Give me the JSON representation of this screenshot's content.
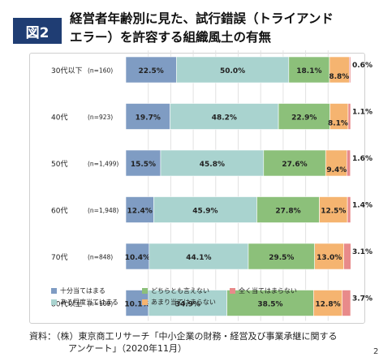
{
  "figure_badge": "図2",
  "title_line1": "経営者年齢別に見た、試行錯誤（トライアンド",
  "title_line2": "エラー）を許容する組織風土の有無",
  "source_line1": "資料：（株）東京商工リサーチ「中小企業の財務・経営及び事業承継に関する",
  "source_line2": "アンケート」（2020年11月）",
  "corner_text": "2",
  "chart_data": {
    "type": "bar",
    "orientation": "horizontal",
    "stacked": true,
    "title": "",
    "xlabel": "",
    "ylabel": "",
    "xlim": [
      0,
      100
    ],
    "x_ticks": [
      "0%",
      "10%",
      "20%",
      "30%",
      "40%",
      "50%",
      "60%",
      "70%",
      "80%",
      "90%"
    ],
    "categories": [
      "30代以下",
      "40代",
      "50代",
      "60代",
      "70代",
      "80代以上"
    ],
    "sample_sizes": [
      "(n=160)",
      "(n=923)",
      "(n=1,499)",
      "(n=1,948)",
      "(n=848)",
      "(n=109)"
    ],
    "series": [
      {
        "name": "十分当てはまる",
        "color": "#7f9cc3",
        "values": [
          22.5,
          19.7,
          15.5,
          12.4,
          10.4,
          10.1
        ],
        "labels": [
          "22.5%",
          "19.7%",
          "15.5%",
          "12.4%",
          "10.4%",
          "10.1%"
        ]
      },
      {
        "name": "ある程度当てはまる",
        "color": "#a9d3cf",
        "values": [
          50.0,
          48.2,
          45.8,
          45.9,
          44.1,
          34.9
        ],
        "labels": [
          "50.0%",
          "48.2%",
          "45.8%",
          "45.9%",
          "44.1%",
          "34.9%"
        ]
      },
      {
        "name": "どちらとも言えない",
        "color": "#8cc07a",
        "values": [
          18.1,
          22.9,
          27.6,
          27.8,
          29.5,
          38.5
        ],
        "labels": [
          "18.1%",
          "22.9%",
          "27.6%",
          "27.8%",
          "29.5%",
          "38.5%"
        ]
      },
      {
        "name": "あまり当てはまらない",
        "color": "#f5b470",
        "values": [
          8.8,
          8.1,
          9.4,
          12.5,
          13.0,
          12.8
        ],
        "labels": [
          "8.8%",
          "8.1%",
          "9.4%",
          "12.5%",
          "13.0%",
          "12.8%"
        ]
      },
      {
        "name": "全く当てはまらない",
        "color": "#e88a8a",
        "values": [
          0.6,
          1.1,
          1.6,
          1.4,
          3.1,
          3.7
        ],
        "labels": [
          "0.6%",
          "1.1%",
          "1.6%",
          "1.4%",
          "3.1%",
          "3.7%"
        ]
      }
    ],
    "legend_position": "bottom",
    "legend_order": [
      "十分当てはまる",
      "どちらとも言えない",
      "全く当てはまらない",
      "ある程度当てはまる",
      "あまり当てはまらない"
    ]
  }
}
